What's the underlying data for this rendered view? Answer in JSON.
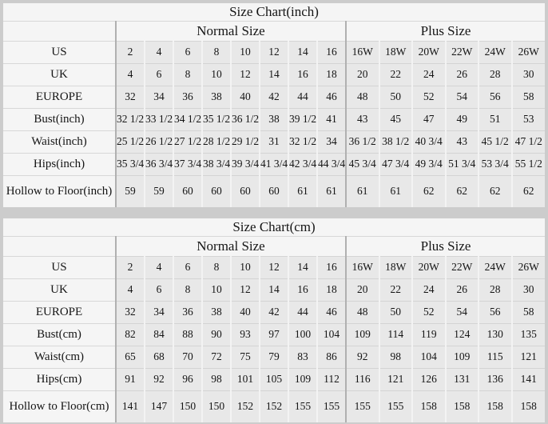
{
  "page": {
    "colors": {
      "page_background": "#cccccc",
      "table_background": "#f5f5f5",
      "data_cell_background": "#e8e8e8",
      "row_border": "#d6d6d6",
      "major_separator": "#b0b0b0",
      "text": "#151515"
    }
  },
  "chart_data": [
    {
      "type": "table",
      "title": "Size Chart(inch)",
      "column_groups": [
        {
          "label": "Normal Size",
          "span": 8
        },
        {
          "label": "Plus Size",
          "span": 6
        }
      ],
      "rows": [
        {
          "label": "US",
          "values": [
            "2",
            "4",
            "6",
            "8",
            "10",
            "12",
            "14",
            "16",
            "16W",
            "18W",
            "20W",
            "22W",
            "24W",
            "26W"
          ]
        },
        {
          "label": "UK",
          "values": [
            "4",
            "6",
            "8",
            "10",
            "12",
            "14",
            "16",
            "18",
            "20",
            "22",
            "24",
            "26",
            "28",
            "30"
          ]
        },
        {
          "label": "EUROPE",
          "values": [
            "32",
            "34",
            "36",
            "38",
            "40",
            "42",
            "44",
            "46",
            "48",
            "50",
            "52",
            "54",
            "56",
            "58"
          ]
        },
        {
          "label": "Bust(inch)",
          "values": [
            "32 1/2",
            "33 1/2",
            "34 1/2",
            "35 1/2",
            "36 1/2",
            "38",
            "39 1/2",
            "41",
            "43",
            "45",
            "47",
            "49",
            "51",
            "53"
          ]
        },
        {
          "label": "Waist(inch)",
          "values": [
            "25 1/2",
            "26 1/2",
            "27 1/2",
            "28 1/2",
            "29 1/2",
            "31",
            "32 1/2",
            "34",
            "36 1/2",
            "38 1/2",
            "40 3/4",
            "43",
            "45 1/2",
            "47 1/2"
          ]
        },
        {
          "label": "Hips(inch)",
          "values": [
            "35 3/4",
            "36 3/4",
            "37 3/4",
            "38 3/4",
            "39 3/4",
            "41 3/4",
            "42 3/4",
            "44 3/4",
            "45 3/4",
            "47 3/4",
            "49 3/4",
            "51 3/4",
            "53 3/4",
            "55 1/2"
          ]
        },
        {
          "label": "Hollow to Floor(inch)",
          "values": [
            "59",
            "59",
            "60",
            "60",
            "60",
            "60",
            "61",
            "61",
            "61",
            "61",
            "62",
            "62",
            "62",
            "62"
          ]
        }
      ]
    },
    {
      "type": "table",
      "title": "Size Chart(cm)",
      "column_groups": [
        {
          "label": "Normal Size",
          "span": 8
        },
        {
          "label": "Plus Size",
          "span": 6
        }
      ],
      "rows": [
        {
          "label": "US",
          "values": [
            "2",
            "4",
            "6",
            "8",
            "10",
            "12",
            "14",
            "16",
            "16W",
            "18W",
            "20W",
            "22W",
            "24W",
            "26W"
          ]
        },
        {
          "label": "UK",
          "values": [
            "4",
            "6",
            "8",
            "10",
            "12",
            "14",
            "16",
            "18",
            "20",
            "22",
            "24",
            "26",
            "28",
            "30"
          ]
        },
        {
          "label": "EUROPE",
          "values": [
            "32",
            "34",
            "36",
            "38",
            "40",
            "42",
            "44",
            "46",
            "48",
            "50",
            "52",
            "54",
            "56",
            "58"
          ]
        },
        {
          "label": "Bust(cm)",
          "values": [
            "82",
            "84",
            "88",
            "90",
            "93",
            "97",
            "100",
            "104",
            "109",
            "114",
            "119",
            "124",
            "130",
            "135"
          ]
        },
        {
          "label": "Waist(cm)",
          "values": [
            "65",
            "68",
            "70",
            "72",
            "75",
            "79",
            "83",
            "86",
            "92",
            "98",
            "104",
            "109",
            "115",
            "121"
          ]
        },
        {
          "label": "Hips(cm)",
          "values": [
            "91",
            "92",
            "96",
            "98",
            "101",
            "105",
            "109",
            "112",
            "116",
            "121",
            "126",
            "131",
            "136",
            "141"
          ]
        },
        {
          "label": "Hollow to Floor(cm)",
          "values": [
            "141",
            "147",
            "150",
            "150",
            "152",
            "152",
            "155",
            "155",
            "155",
            "155",
            "158",
            "158",
            "158",
            "158"
          ]
        }
      ]
    }
  ]
}
